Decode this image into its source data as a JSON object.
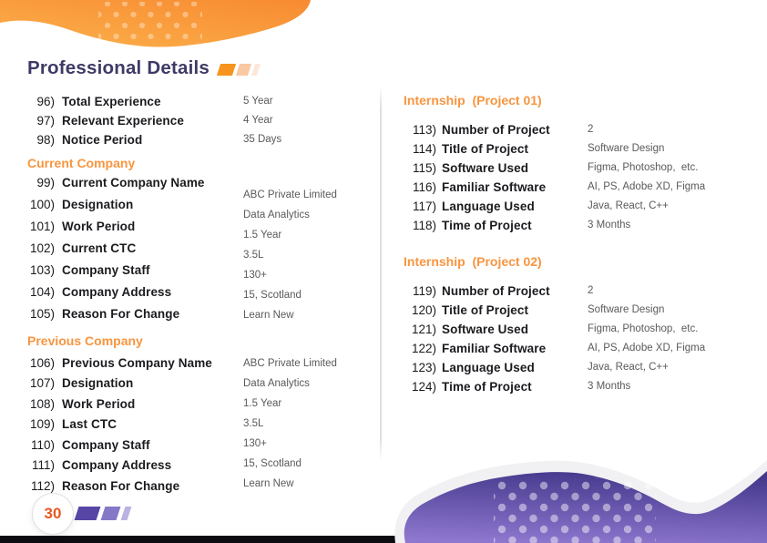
{
  "title": {
    "text": "Professional Details"
  },
  "footer": {
    "page_number": "30"
  },
  "columns": {
    "left": {
      "sections": [
        {
          "heading": null,
          "items": [
            {
              "num": "96)",
              "label": "Total Experience",
              "value": "5 Year"
            },
            {
              "num": "97)",
              "label": "Relevant Experience",
              "value": "4 Year"
            },
            {
              "num": "98)",
              "label": "Notice Period",
              "value": "35 Days"
            }
          ]
        },
        {
          "heading": "Current Company",
          "items": [
            {
              "num": "99)",
              "label": "Current Company Name",
              "value": "ABC Private Limited"
            },
            {
              "num": "100)",
              "label": "Designation",
              "value": "Data Analytics"
            },
            {
              "num": "101)",
              "label": "Work Period",
              "value": "1.5 Year"
            },
            {
              "num": "102)",
              "label": "Current CTC",
              "value": "3.5L"
            },
            {
              "num": "103)",
              "label": "Company Staff",
              "value": "130+"
            },
            {
              "num": "104)",
              "label": "Company Address",
              "value": "15, Scotland"
            },
            {
              "num": "105)",
              "label": "Reason For Change",
              "value": "Learn New"
            }
          ]
        },
        {
          "heading": "Previous Company",
          "items": [
            {
              "num": "106)",
              "label": "Previous Company Name",
              "value": "ABC Private Limited"
            },
            {
              "num": "107)",
              "label": "Designation",
              "value": "Data Analytics"
            },
            {
              "num": "108)",
              "label": "Work Period",
              "value": "1.5 Year"
            },
            {
              "num": "109)",
              "label": "Last CTC",
              "value": "3.5L"
            },
            {
              "num": "110)",
              "label": "Company Staff",
              "value": "130+"
            },
            {
              "num": "111)",
              "label": "Company Address",
              "value": "15, Scotland"
            },
            {
              "num": "112)",
              "label": "Reason For Change",
              "value": "Learn New"
            }
          ]
        }
      ]
    },
    "right": {
      "sections": [
        {
          "heading": "Internship  (Project 01)",
          "items": [
            {
              "num": "113)",
              "label": "Number of Project",
              "value": "2"
            },
            {
              "num": "114)",
              "label": "Title of Project",
              "value": "Software Design"
            },
            {
              "num": "115)",
              "label": "Software Used",
              "value": "Figma, Photoshop,  etc."
            },
            {
              "num": "116)",
              "label": "Familiar Software",
              "value": "AI, PS, Adobe XD, Figma"
            },
            {
              "num": "117)",
              "label": "Language Used",
              "value": "Java, React, C++"
            },
            {
              "num": "118)",
              "label": "Time of Project",
              "value": "3 Months"
            }
          ]
        },
        {
          "heading": "Internship  (Project 02)",
          "items": [
            {
              "num": "119)",
              "label": "Number of Project",
              "value": "2"
            },
            {
              "num": "120)",
              "label": "Title of Project",
              "value": "Software Design"
            },
            {
              "num": "121)",
              "label": "Software Used",
              "value": "Figma, Photoshop,  etc."
            },
            {
              "num": "122)",
              "label": "Familiar Software",
              "value": "AI, PS, Adobe XD, Figma"
            },
            {
              "num": "123)",
              "label": "Language Used",
              "value": "Java, React, C++"
            },
            {
              "num": "124)",
              "label": "Time of Project",
              "value": "3 Months"
            }
          ]
        }
      ]
    }
  },
  "colors": {
    "accent-orange": "#F8953F",
    "title-navy": "#3E3A66",
    "label-dark": "#1B1B1F",
    "value-gray": "#5A5A5E",
    "page-number-red": "#E9561F",
    "blob-orange-1": "#F88C33",
    "blob-orange-2": "#FBB04A",
    "purple-dark": "#45398C",
    "purple-light": "#8E77CF",
    "title-sq-1": "#F7941D",
    "title-sq-2": "#F9C9A2",
    "title-sq-3": "#FBE8DA",
    "footer-sq-1": "#5746A6",
    "footer-sq-2": "#8478C7",
    "footer-sq-3": "#BCB2E2"
  }
}
